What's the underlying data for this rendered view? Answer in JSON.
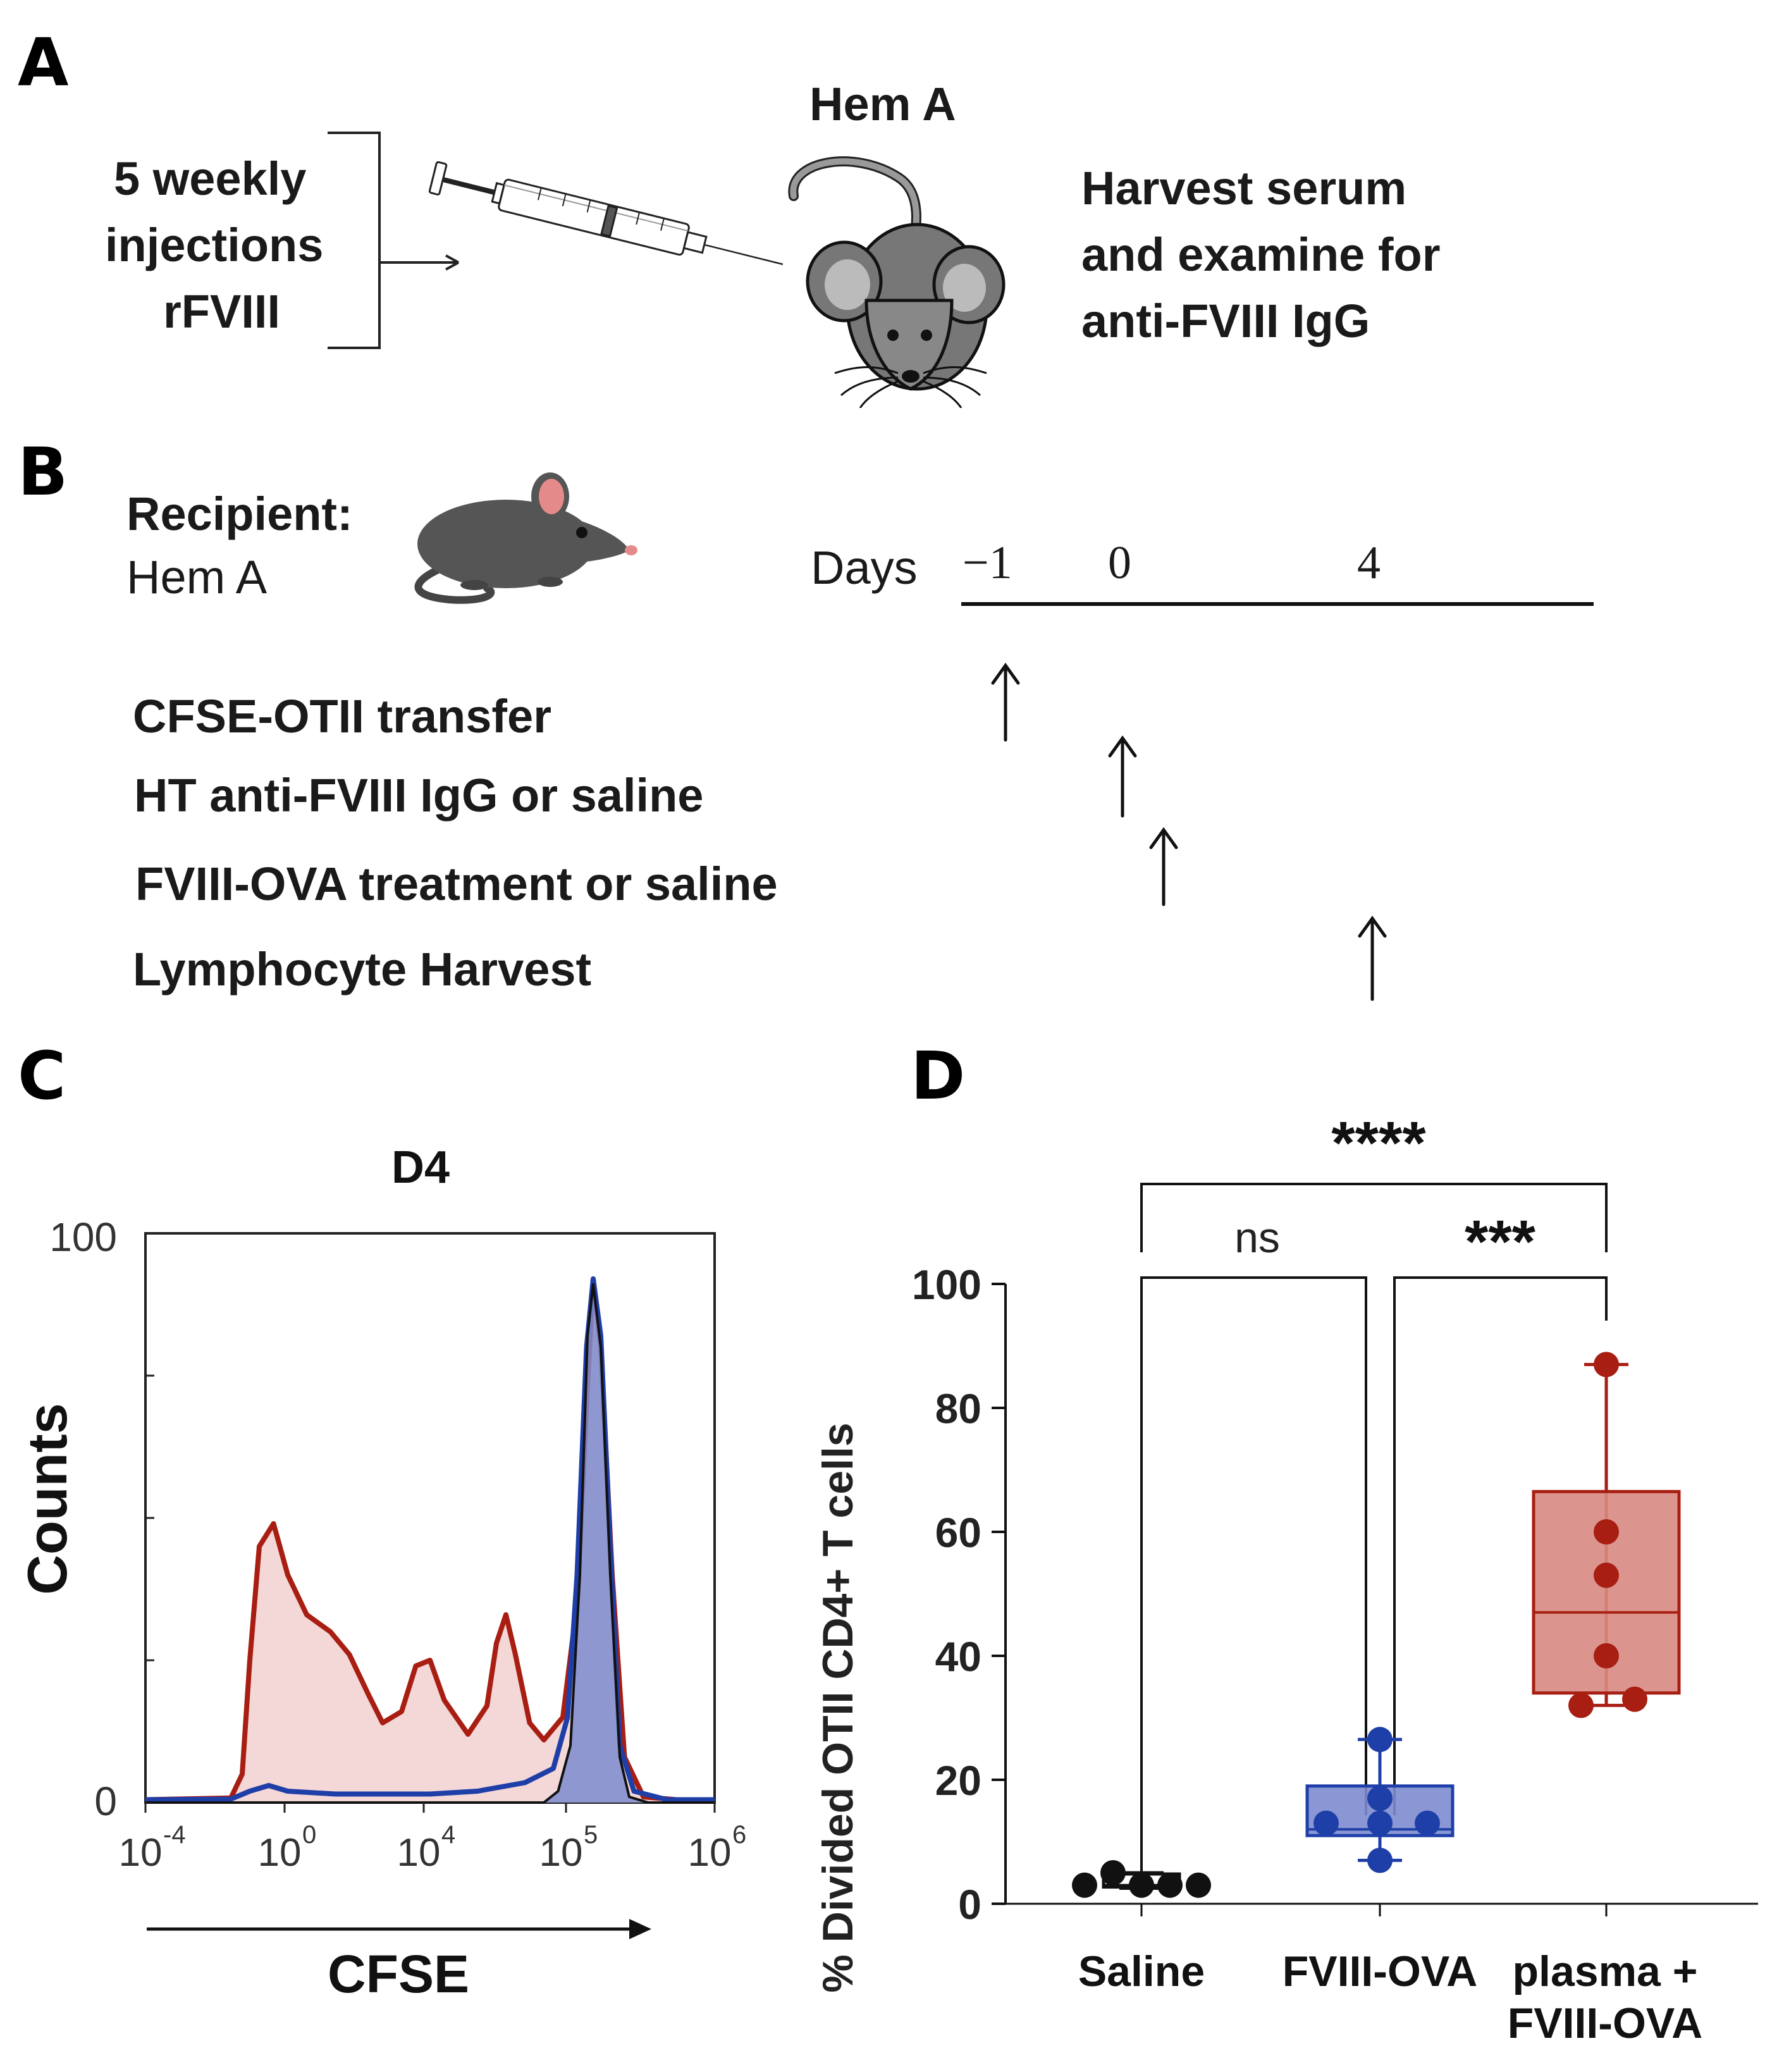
{
  "panel_a": {
    "letter": "A",
    "injection_lines": [
      "5 weekly",
      "injections",
      "rFVIII"
    ],
    "mouse_label": "Hem A",
    "outcome_lines": [
      "Harvest serum",
      "and examine for",
      "anti-FVIII IgG"
    ]
  },
  "panel_b": {
    "letter": "B",
    "recipient_label": "Recipient:",
    "recipient_strain": "Hem A",
    "days_label": "Days",
    "day_ticks": [
      "−1",
      "0",
      "4"
    ],
    "steps": [
      "CFSE-OTII transfer",
      "HT anti-FVIII IgG or saline",
      "FVIII-OVA treatment or saline",
      "Lymphocyte Harvest"
    ]
  },
  "panel_c": {
    "letter": "C",
    "title": "D4",
    "ylabel": "Counts",
    "xlabel": "CFSE",
    "y_ticks": [
      "100",
      "0"
    ]
  },
  "panel_d": {
    "letter": "D",
    "ylabel": "% Divided OTII CD4+ T cells",
    "sig_top": "****",
    "sig_ns": "ns",
    "sig_right": "***"
  },
  "colors": {
    "saline": "#111111",
    "fviii_ova": "#1f3fa8",
    "plasma": "#a81e12",
    "plasma_fill": "#f3d3d3",
    "fviii_fill": "#7d8ccf"
  },
  "chart_data": [
    {
      "type": "histogram",
      "title": "D4",
      "xlabel": "CFSE",
      "ylabel": "Counts",
      "x_scale": "log",
      "x_ticks": [
        {
          "base": "10",
          "exp": "-4"
        },
        {
          "base": "10",
          "exp": "0"
        },
        {
          "base": "10",
          "exp": "4"
        },
        {
          "base": "10",
          "exp": "5"
        },
        {
          "base": "10",
          "exp": "6"
        }
      ],
      "ylim": [
        0,
        100
      ],
      "series": [
        {
          "name": "plasma + FVIII-OVA",
          "color": "#a81e12",
          "filled": true,
          "points": [
            [
              0,
              0.5
            ],
            [
              0.9,
              0.8
            ],
            [
              1.02,
              5
            ],
            [
              1.1,
              25
            ],
            [
              1.2,
              45
            ],
            [
              1.35,
              49
            ],
            [
              1.5,
              40
            ],
            [
              1.7,
              33
            ],
            [
              1.95,
              30
            ],
            [
              2.15,
              26
            ],
            [
              2.35,
              19
            ],
            [
              2.5,
              14
            ],
            [
              2.7,
              16
            ],
            [
              2.85,
              24
            ],
            [
              3.0,
              25
            ],
            [
              3.15,
              18
            ],
            [
              3.4,
              12
            ],
            [
              3.6,
              17
            ],
            [
              3.7,
              28
            ],
            [
              3.8,
              33
            ],
            [
              3.9,
              26
            ],
            [
              4.05,
              14
            ],
            [
              4.2,
              11
            ],
            [
              4.4,
              15
            ],
            [
              4.55,
              35
            ],
            [
              4.65,
              70
            ],
            [
              4.72,
              92
            ],
            [
              4.8,
              80
            ],
            [
              4.92,
              40
            ],
            [
              5.05,
              8
            ],
            [
              5.25,
              1
            ],
            [
              5.6,
              0.5
            ],
            [
              6.0,
              0.5
            ]
          ]
        },
        {
          "name": "FVIII-OVA",
          "color": "#1f3fa8",
          "filled": false,
          "points": [
            [
              0,
              0.5
            ],
            [
              0.9,
              0.6
            ],
            [
              1.1,
              2
            ],
            [
              1.3,
              3
            ],
            [
              1.5,
              2
            ],
            [
              2.0,
              1.5
            ],
            [
              2.5,
              1.5
            ],
            [
              3.0,
              1.5
            ],
            [
              3.5,
              2
            ],
            [
              4.0,
              3.5
            ],
            [
              4.3,
              6
            ],
            [
              4.45,
              15
            ],
            [
              4.55,
              40
            ],
            [
              4.65,
              80
            ],
            [
              4.72,
              92
            ],
            [
              4.8,
              82
            ],
            [
              4.9,
              45
            ],
            [
              5.0,
              10
            ],
            [
              5.15,
              2
            ],
            [
              5.5,
              0.5
            ],
            [
              6.0,
              0.5
            ]
          ]
        },
        {
          "name": "Saline",
          "color": "#111111",
          "filled": true,
          "points": [
            [
              0,
              0
            ],
            [
              4.2,
              0
            ],
            [
              4.35,
              2
            ],
            [
              4.48,
              10
            ],
            [
              4.58,
              40
            ],
            [
              4.66,
              82
            ],
            [
              4.72,
              91
            ],
            [
              4.8,
              80
            ],
            [
              4.9,
              40
            ],
            [
              5.0,
              8
            ],
            [
              5.1,
              1
            ],
            [
              5.3,
              0
            ],
            [
              6.0,
              0
            ]
          ]
        }
      ]
    },
    {
      "type": "box",
      "ylabel": "% Divided OTII CD4+ T cells",
      "ylim": [
        0,
        100
      ],
      "y_ticks": [
        0,
        20,
        40,
        60,
        80,
        100
      ],
      "categories": [
        [
          "Saline"
        ],
        [
          "FVIII-OVA"
        ],
        [
          "plasma +",
          "FVIII-OVA"
        ]
      ],
      "series": [
        {
          "name": "Saline",
          "color": "#111111",
          "whisker_low": 2.5,
          "q1": 2.7,
          "median": 3.0,
          "q3": 4.8,
          "whisker_high": 5,
          "points": [
            3,
            5,
            3,
            3,
            3
          ]
        },
        {
          "name": "FVIII-OVA",
          "color": "#1f3fa8",
          "whisker_low": 7,
          "q1": 11,
          "median": 12,
          "q3": 19,
          "whisker_high": 26.5,
          "points": [
            26.5,
            17,
            13,
            13,
            13,
            7
          ]
        },
        {
          "name": "plasma + FVIII-OVA",
          "color": "#a81e12",
          "whisker_low": 32,
          "q1": 34,
          "median": 47,
          "q3": 66.5,
          "whisker_high": 87,
          "points": [
            87,
            60,
            53,
            40,
            32,
            33
          ]
        }
      ],
      "comparisons": [
        {
          "groups": [
            "Saline",
            "plasma + FVIII-OVA"
          ],
          "label": "****"
        },
        {
          "groups": [
            "Saline",
            "FVIII-OVA"
          ],
          "label": "ns"
        },
        {
          "groups": [
            "FVIII-OVA",
            "plasma + FVIII-OVA"
          ],
          "label": "***"
        }
      ]
    }
  ]
}
